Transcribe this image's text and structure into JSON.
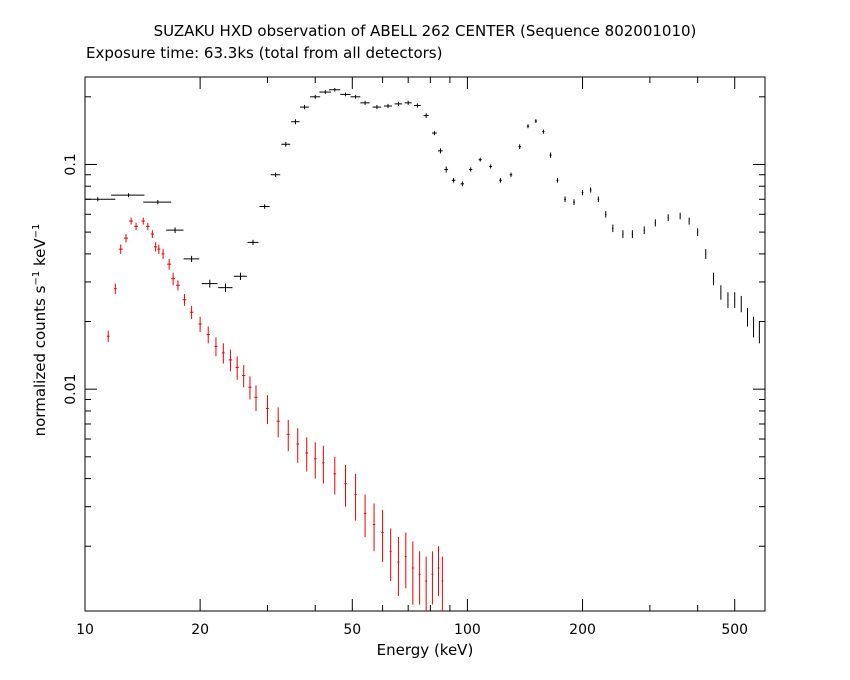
{
  "chart_data": {
    "type": "scatter",
    "title": "SUZAKU HXD observation of ABELL 262 CENTER (Sequence 802001010)",
    "subtitle": "Exposure time: 63.3ks (total from all detectors)",
    "xlabel": "Energy (keV)",
    "ylabel": {
      "parts": [
        "normalized counts s",
        "−1",
        " keV",
        "−1"
      ]
    },
    "xscale": "log",
    "yscale": "log",
    "xlim": [
      10,
      600
    ],
    "ylim": [
      0.00103,
      0.245
    ],
    "xticks": [
      {
        "value": 10,
        "label": "10"
      },
      {
        "value": 20,
        "label": "20"
      },
      {
        "value": 50,
        "label": "50"
      },
      {
        "value": 100,
        "label": "100"
      },
      {
        "value": 200,
        "label": "200"
      },
      {
        "value": 500,
        "label": "500"
      }
    ],
    "yticks": [
      {
        "value": 0.1,
        "label": "0.1"
      },
      {
        "value": 0.01,
        "label": "0.01"
      }
    ],
    "series": [
      {
        "color": "#000000",
        "anchors": [
          [
            10.8,
            0.07,
            1.2,
            0.0015
          ],
          [
            13.0,
            0.073,
            1.3,
            0.0015
          ],
          [
            15.5,
            0.068,
            1.3,
            0.0015
          ],
          [
            17.2,
            0.051,
            0.9,
            0.0015
          ],
          [
            19.0,
            0.038,
            0.9,
            0.0012
          ],
          [
            21.2,
            0.0295,
            1.0,
            0.0012
          ],
          [
            23.3,
            0.0283,
            1.0,
            0.0012
          ],
          [
            25.5,
            0.0318,
            1.0,
            0.0012
          ],
          [
            27.5,
            0.045,
            0.9,
            0.0012
          ],
          [
            29.5,
            0.065,
            0.9,
            0.0015
          ],
          [
            31.5,
            0.09,
            0.9,
            0.002
          ],
          [
            33.5,
            0.123,
            0.9,
            0.003
          ],
          [
            35.5,
            0.155,
            0.9,
            0.004
          ],
          [
            37.5,
            0.18,
            1.0,
            0.004
          ],
          [
            40.0,
            0.2,
            1.2,
            0.004
          ],
          [
            42.5,
            0.21,
            1.5,
            0.004
          ],
          [
            45.0,
            0.215,
            1.5,
            0.004
          ],
          [
            48.0,
            0.205,
            1.5,
            0.004
          ],
          [
            51.0,
            0.2,
            1.5,
            0.004
          ],
          [
            54.0,
            0.188,
            1.5,
            0.004
          ],
          [
            58.0,
            0.18,
            1.5,
            0.004
          ],
          [
            62.0,
            0.182,
            1.5,
            0.004
          ],
          [
            66.0,
            0.186,
            1.5,
            0.004
          ],
          [
            70.0,
            0.188,
            1.5,
            0.004
          ],
          [
            74.0,
            0.183,
            1.5,
            0.004
          ],
          [
            78.0,
            0.165,
            1.2,
            0.004
          ],
          [
            82.0,
            0.138,
            1.2,
            0.003
          ],
          [
            85.0,
            0.115,
            1.2,
            0.003
          ],
          [
            88.0,
            0.095,
            1.0,
            0.003
          ],
          [
            92.0,
            0.085,
            1.0,
            0.002
          ],
          [
            97.0,
            0.082,
            1.0,
            0.002
          ],
          [
            102.0,
            0.095,
            1.0,
            0.002
          ],
          [
            108.0,
            0.105,
            1.0,
            0.002
          ],
          [
            115.0,
            0.098,
            1.0,
            0.002
          ],
          [
            122.0,
            0.085,
            1.0,
            0.002
          ],
          [
            130.0,
            0.09,
            1.0,
            0.002
          ],
          [
            137.0,
            0.12,
            1.0,
            0.003
          ],
          [
            144.0,
            0.148,
            1.0,
            0.003
          ],
          [
            151.0,
            0.156,
            1.0,
            0.003
          ],
          [
            158.0,
            0.14,
            1.0,
            0.003
          ],
          [
            165.0,
            0.11,
            1.0,
            0.003
          ],
          [
            172.0,
            0.085,
            1.0,
            0.002
          ],
          [
            180.0,
            0.07,
            1.0,
            0.002
          ],
          [
            190.0,
            0.068,
            1.0,
            0.002
          ],
          [
            200.0,
            0.075,
            1.0,
            0.002
          ],
          [
            210.0,
            0.077,
            1.0,
            0.002
          ],
          [
            220.0,
            0.07,
            1.0,
            0.002
          ],
          [
            230.0,
            0.06,
            1.0,
            0.002
          ],
          [
            240.0,
            0.052,
            1.0,
            0.002
          ],
          [
            255.0,
            0.049,
            1.0,
            0.002
          ],
          [
            270.0,
            0.049,
            1.0,
            0.002
          ],
          [
            290.0,
            0.051,
            1.0,
            0.002
          ],
          [
            310.0,
            0.055,
            1.0,
            0.002
          ],
          [
            335.0,
            0.058,
            1.0,
            0.002
          ],
          [
            360.0,
            0.059,
            1.0,
            0.002
          ],
          [
            380.0,
            0.056,
            1.0,
            0.002
          ],
          [
            400.0,
            0.05,
            1.0,
            0.002
          ],
          [
            420.0,
            0.04,
            1.0,
            0.002
          ],
          [
            440.0,
            0.031,
            1.0,
            0.002
          ],
          [
            460.0,
            0.027,
            1.0,
            0.002
          ],
          [
            480.0,
            0.025,
            1.0,
            0.002
          ],
          [
            500.0,
            0.025,
            1.0,
            0.002
          ],
          [
            520.0,
            0.024,
            1.0,
            0.002
          ],
          [
            540.0,
            0.021,
            1.0,
            0.002
          ],
          [
            560.0,
            0.019,
            1.0,
            0.002
          ],
          [
            580.0,
            0.018,
            1.0,
            0.002
          ],
          [
            600.0,
            0.018,
            1.0,
            0.002
          ]
        ]
      },
      {
        "color": "#ee0000",
        "anchors": [
          [
            11.5,
            0.0172,
            0.1,
            0.001
          ],
          [
            12.0,
            0.028,
            0.1,
            0.0015
          ],
          [
            12.4,
            0.042,
            0.15,
            0.002
          ],
          [
            12.8,
            0.047,
            0.15,
            0.002
          ],
          [
            13.2,
            0.056,
            0.15,
            0.002
          ],
          [
            13.6,
            0.053,
            0.15,
            0.002
          ],
          [
            14.2,
            0.056,
            0.15,
            0.002
          ],
          [
            14.6,
            0.053,
            0.15,
            0.002
          ],
          [
            15.0,
            0.049,
            0.15,
            0.002
          ],
          [
            15.3,
            0.043,
            0.15,
            0.002
          ],
          [
            15.6,
            0.042,
            0.15,
            0.002
          ],
          [
            16.0,
            0.04,
            0.15,
            0.002
          ],
          [
            16.6,
            0.036,
            0.2,
            0.002
          ],
          [
            17.0,
            0.031,
            0.2,
            0.002
          ],
          [
            17.5,
            0.029,
            0.2,
            0.0015
          ],
          [
            18.2,
            0.025,
            0.2,
            0.0015
          ],
          [
            19.0,
            0.022,
            0.2,
            0.0015
          ],
          [
            20.0,
            0.0195,
            0.2,
            0.0015
          ],
          [
            21.0,
            0.0175,
            0.2,
            0.0015
          ],
          [
            22.0,
            0.0155,
            0.2,
            0.0015
          ],
          [
            23.0,
            0.0145,
            0.2,
            0.0015
          ],
          [
            24.0,
            0.0135,
            0.25,
            0.0015
          ],
          [
            25.0,
            0.0125,
            0.25,
            0.0015
          ],
          [
            26.0,
            0.0115,
            0.25,
            0.0013
          ],
          [
            27.0,
            0.0102,
            0.25,
            0.0012
          ],
          [
            28.0,
            0.0092,
            0.25,
            0.0012
          ],
          [
            30.0,
            0.0082,
            0.25,
            0.0012
          ],
          [
            32.0,
            0.0072,
            0.3,
            0.0011
          ],
          [
            34.0,
            0.0063,
            0.3,
            0.001
          ],
          [
            36.0,
            0.0057,
            0.3,
            0.001
          ],
          [
            38.0,
            0.0052,
            0.3,
            0.0009
          ],
          [
            40.0,
            0.0049,
            0.3,
            0.0009
          ],
          [
            42.0,
            0.0047,
            0.3,
            0.0009
          ],
          [
            45.0,
            0.0042,
            0.35,
            0.0008
          ],
          [
            48.0,
            0.0038,
            0.35,
            0.0008
          ],
          [
            51.0,
            0.0034,
            0.35,
            0.0008
          ],
          [
            54.0,
            0.0028,
            0.4,
            0.0006
          ],
          [
            57.0,
            0.0025,
            0.4,
            0.0006
          ],
          [
            60.0,
            0.0023,
            0.4,
            0.0006
          ],
          [
            63.0,
            0.0019,
            0.4,
            0.0005
          ],
          [
            66.0,
            0.0017,
            0.4,
            0.0005
          ],
          [
            69.0,
            0.0018,
            0.4,
            0.0005
          ],
          [
            72.0,
            0.0016,
            0.45,
            0.0005
          ],
          [
            75.0,
            0.0015,
            0.45,
            0.0004
          ],
          [
            78.0,
            0.0014,
            0.45,
            0.0004
          ],
          [
            81.0,
            0.0015,
            0.45,
            0.0004
          ],
          [
            84.0,
            0.0016,
            0.45,
            0.0004
          ],
          [
            86.0,
            0.0014,
            0.45,
            0.0004
          ]
        ]
      }
    ]
  }
}
